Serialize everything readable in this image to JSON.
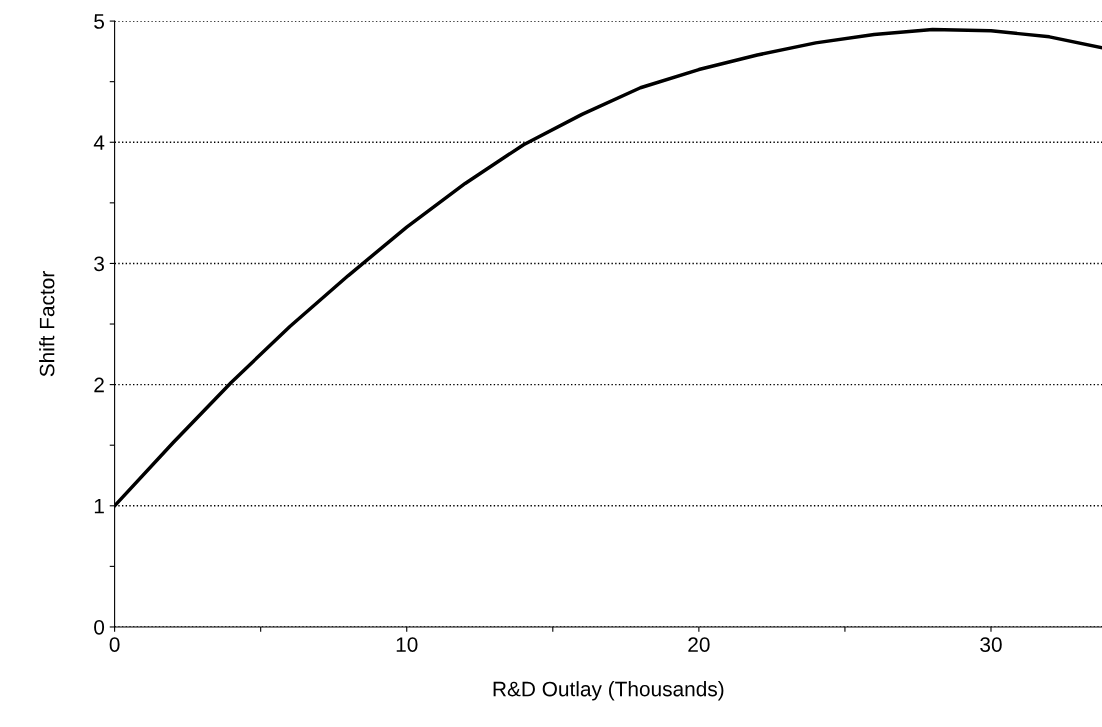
{
  "chart_data": {
    "type": "line",
    "xlabel": "R&D Outlay (Thousands)",
    "ylabel": "Shift Factor",
    "x": [
      0,
      2,
      4,
      6,
      8,
      10,
      12,
      14,
      16,
      18,
      20,
      22,
      24,
      26,
      28,
      30,
      32,
      33.8
    ],
    "series": [
      {
        "color": "#000000",
        "values": [
          1,
          1.52,
          2.02,
          2.48,
          2.9,
          3.3,
          3.66,
          3.98,
          4.23,
          4.45,
          4.6,
          4.72,
          4.82,
          4.89,
          4.93,
          4.92,
          4.87,
          4.78
        ]
      }
    ],
    "xlim": [
      0,
      33.8
    ],
    "ylim": [
      0,
      5
    ],
    "xticks": [
      0,
      {
        "value": 5,
        "label": null
      },
      10,
      {
        "value": 15,
        "label": null
      },
      20,
      {
        "value": 25,
        "label": null
      },
      30
    ],
    "yticks": [
      0,
      {
        "value": 0.5,
        "label": null
      },
      1,
      {
        "value": 1.5,
        "label": null
      },
      2,
      {
        "value": 2.5,
        "label": null
      },
      3,
      {
        "value": 3.5,
        "label": null
      },
      4,
      {
        "value": 4.5,
        "label": null
      },
      5
    ],
    "grid": "y",
    "marker": "none",
    "line_style": "solid",
    "legend": false
  }
}
